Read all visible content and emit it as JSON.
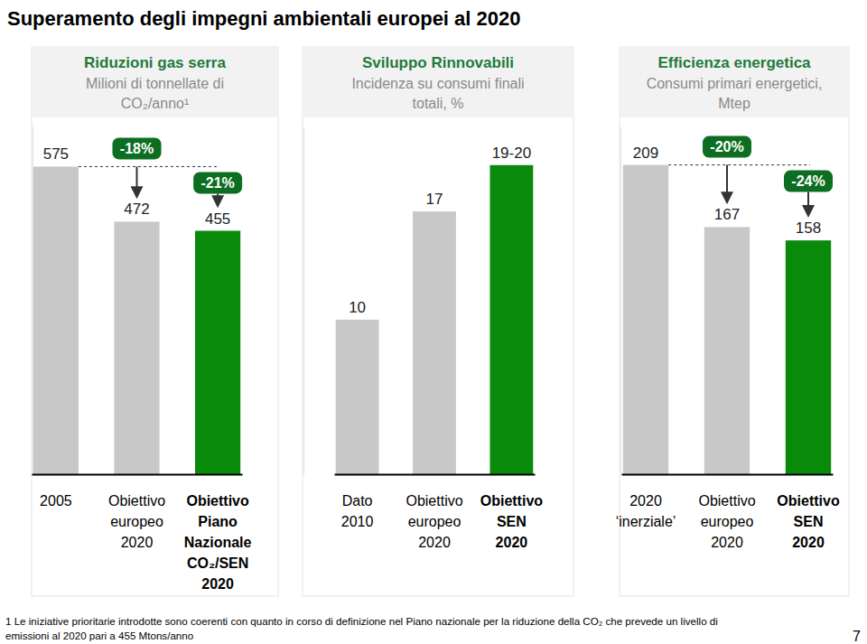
{
  "title": "Superamento degli impegni ambientali europei al 2020",
  "chart_data": [
    {
      "type": "bar",
      "title": "Riduzioni gas serra",
      "subtitle": "Milioni di tonnellate di\nCO₂/anno¹",
      "categories": [
        "2005",
        "Obiettivo\neuropeo\n2020",
        "Obiettivo\nPiano\nNazionale\nCO₂/SEN\n2020"
      ],
      "values": [
        575,
        472,
        455
      ],
      "colors": [
        "#c8c8c8",
        "#c8c8c8",
        "#0a8a0a"
      ],
      "ylim": [
        0,
        650
      ],
      "yticks": [],
      "tick_labels": "x",
      "data_labels": true,
      "annotations": [
        {
          "text": "-18%",
          "category": "Obiettivo\neuropeo\n2020"
        },
        {
          "text": "-21%",
          "category": "Obiettivo\nPiano\nNazionale\nCO₂/SEN\n2020"
        }
      ]
    },
    {
      "type": "bar",
      "title": "Sviluppo Rinnovabili",
      "subtitle": "Incidenza su consumi finali\ntotali, %",
      "categories": [
        "Dato\n2010",
        "Obiettivo\neuropeo\n2020",
        "Obiettivo\nSEN\n2020"
      ],
      "values": [
        10,
        17,
        20
      ],
      "value_labels": [
        "10",
        "17",
        "19-20"
      ],
      "colors": [
        "#c8c8c8",
        "#c8c8c8",
        "#0a8a0a"
      ],
      "ylim": [
        0,
        22.5
      ],
      "yticks": [],
      "tick_labels": "x",
      "data_labels": true
    },
    {
      "type": "bar",
      "title": "Efficienza energetica",
      "subtitle": "Consumi primari energetici,\nMtep",
      "categories": [
        "2020\n‘inerziale’",
        "Obiettivo\neuropeo\n2020",
        "Obiettivo\nSEN\n2020"
      ],
      "values": [
        209,
        167,
        158
      ],
      "colors": [
        "#c8c8c8",
        "#c8c8c8",
        "#0a8a0a"
      ],
      "ylim": [
        0,
        235
      ],
      "yticks": [],
      "tick_labels": "x",
      "data_labels": true,
      "annotations": [
        {
          "text": "-20%",
          "category": "Obiettivo\neuropeo\n2020"
        },
        {
          "text": "-24%",
          "category": "Obiettivo\nSEN\n2020"
        }
      ]
    }
  ],
  "footnote": "1 Le iniziative prioritarie introdotte sono coerenti con quanto in corso di definizione nel Piano nazionale per la riduzione della CO₂ che prevede un livello  di\nemissioni al 2020 pari a 455 Mtons/anno",
  "page_number": "7"
}
